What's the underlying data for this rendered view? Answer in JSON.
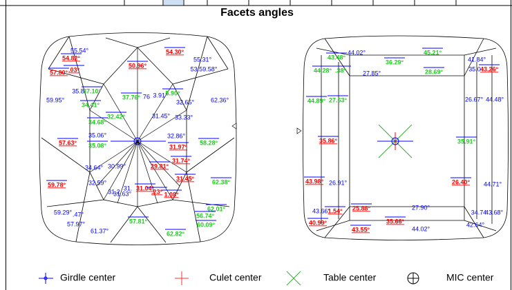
{
  "title": "Facets angles",
  "left_diagram": {
    "labels": [
      {
        "text": "55.54°",
        "color": "blue"
      },
      {
        "text": "54.30°",
        "color": "red"
      },
      {
        "text": "54.82°",
        "color": "red"
      },
      {
        "text": "50.96°",
        "color": "red"
      },
      {
        "text": "55.31°",
        "color": "blue"
      },
      {
        "text": "57.80°",
        "color": "red"
      },
      {
        "text": ".03°",
        "color": "red"
      },
      {
        "text": "53.59.58°",
        "color": "blue"
      },
      {
        "text": "35.8",
        "color": "blue"
      },
      {
        "text": "37.10°",
        "color": "green"
      },
      {
        "text": "76",
        "color": "blue"
      },
      {
        "text": "3.91°",
        "color": "blue"
      },
      {
        "text": "5.90°",
        "color": "green"
      },
      {
        "text": "37.76°",
        "color": "green"
      },
      {
        "text": "59.95°",
        "color": "blue"
      },
      {
        "text": "62.36°",
        "color": "blue"
      },
      {
        "text": "34.41°",
        "color": "green"
      },
      {
        "text": "32.65°",
        "color": "blue"
      },
      {
        "text": "32.42°",
        "color": "green"
      },
      {
        "text": "31.45°",
        "color": "blue"
      },
      {
        "text": "33.33°",
        "color": "blue"
      },
      {
        "text": "34.68°",
        "color": "green"
      },
      {
        "text": "35.06°",
        "color": "blue"
      },
      {
        "text": "32.86°",
        "color": "blue"
      },
      {
        "text": "57.63°",
        "color": "red"
      },
      {
        "text": "58.28°",
        "color": "green"
      },
      {
        "text": "35.08°",
        "color": "green"
      },
      {
        "text": "31.97°",
        "color": "red"
      },
      {
        "text": "31.74°",
        "color": "red"
      },
      {
        "text": "29.81°",
        "color": "red"
      },
      {
        "text": "34.64°",
        "color": "blue"
      },
      {
        "text": "30.99°",
        "color": "blue"
      },
      {
        "text": "31.45°",
        "color": "red"
      },
      {
        "text": "59.78°",
        "color": "red"
      },
      {
        "text": "32.59°",
        "color": "blue"
      },
      {
        "text": "31.2",
        "color": "blue"
      },
      {
        "text": "31.",
        "color": "blue"
      },
      {
        "text": "31.04°",
        "color": "red"
      },
      {
        "text": "31.63°",
        "color": "blue"
      },
      {
        "text": ".23°",
        "color": "red"
      },
      {
        "text": "1.08°",
        "color": "red"
      },
      {
        "text": "62.38°",
        "color": "green"
      },
      {
        "text": "59.29°",
        "color": "blue"
      },
      {
        "text": ".47°",
        "color": "blue"
      },
      {
        "text": "62.01°",
        "color": "green"
      },
      {
        "text": "57.97°",
        "color": "blue"
      },
      {
        "text": "56.74°",
        "color": "green"
      },
      {
        "text": "60.09°",
        "color": "green"
      },
      {
        "text": "57.81°",
        "color": "green"
      },
      {
        "text": "61.37°",
        "color": "blue"
      },
      {
        "text": "62.82°",
        "color": "green"
      }
    ]
  },
  "right_diagram": {
    "labels": [
      {
        "text": "44.02°",
        "color": "blue"
      },
      {
        "text": "45.21°",
        "color": "green"
      },
      {
        "text": "43.48°",
        "color": "green"
      },
      {
        "text": "41.84°",
        "color": "blue"
      },
      {
        "text": "36.29°",
        "color": "green"
      },
      {
        "text": "35.0",
        "color": "blue"
      },
      {
        "text": "43.26°",
        "color": "red"
      },
      {
        "text": "44.28°",
        "color": "green"
      },
      {
        "text": ".38°",
        "color": "green"
      },
      {
        "text": "27.85°",
        "color": "blue"
      },
      {
        "text": "28.69°",
        "color": "green"
      },
      {
        "text": "26.67°",
        "color": "blue"
      },
      {
        "text": "44.48°",
        "color": "blue"
      },
      {
        "text": "44.89°",
        "color": "green"
      },
      {
        "text": "27.63°",
        "color": "green"
      },
      {
        "text": "35.86°",
        "color": "red"
      },
      {
        "text": "35.91°",
        "color": "green"
      },
      {
        "text": "43.98°",
        "color": "red"
      },
      {
        "text": "26.91°",
        "color": "blue"
      },
      {
        "text": "26.40°",
        "color": "red"
      },
      {
        "text": "44.71°",
        "color": "blue"
      },
      {
        "text": "43.66°",
        "color": "blue"
      },
      {
        "text": "1.54°",
        "color": "red"
      },
      {
        "text": "25.88°",
        "color": "red"
      },
      {
        "text": "27.90°",
        "color": "blue"
      },
      {
        "text": "34.74",
        "color": "blue"
      },
      {
        "text": "43.68°",
        "color": "blue"
      },
      {
        "text": "40.99°",
        "color": "red"
      },
      {
        "text": "35.66°",
        "color": "red"
      },
      {
        "text": "42.64°",
        "color": "blue"
      },
      {
        "text": "43.55°",
        "color": "red"
      },
      {
        "text": "44.02°",
        "color": "blue"
      }
    ]
  },
  "legend": [
    {
      "label": "Girdle center"
    },
    {
      "label": "Culet center"
    },
    {
      "label": "Table center"
    },
    {
      "label": "MIC center"
    }
  ]
}
